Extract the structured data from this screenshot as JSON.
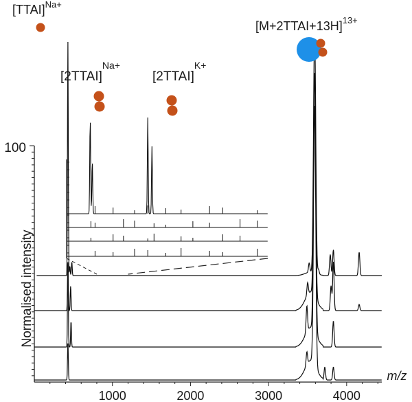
{
  "chart_data": {
    "type": "line",
    "xlabel": "m/z",
    "ylabel": "Normalised intensity",
    "x_ticks": [
      1000,
      2000,
      3000,
      4000
    ],
    "xlim": [
      0,
      4450
    ],
    "y_tick_label": "100",
    "series": [
      {
        "trace_index": 0,
        "peaks": [
          {
            "x": 430,
            "y": 100
          },
          {
            "x": 455,
            "y": 4
          },
          {
            "x": 480,
            "y": 6
          },
          {
            "x": 3520,
            "y": 4
          },
          {
            "x": 3590,
            "y": 105
          },
          {
            "x": 3640,
            "y": 2
          },
          {
            "x": 3790,
            "y": 9
          },
          {
            "x": 3830,
            "y": 11
          },
          {
            "x": 4160,
            "y": 10
          }
        ]
      },
      {
        "trace_index": 1,
        "peaks": [
          {
            "x": 430,
            "y": 8
          },
          {
            "x": 465,
            "y": 4
          },
          {
            "x": 3500,
            "y": 2
          },
          {
            "x": 3590,
            "y": 30
          },
          {
            "x": 3800,
            "y": 4
          },
          {
            "x": 3830,
            "y": 8
          },
          {
            "x": 4160,
            "y": 1
          }
        ]
      },
      {
        "trace_index": 2,
        "peaks": [
          {
            "x": 430,
            "y": 14
          },
          {
            "x": 470,
            "y": 4
          },
          {
            "x": 3490,
            "y": 4
          },
          {
            "x": 3590,
            "y": 40
          },
          {
            "x": 3830,
            "y": 4
          }
        ]
      },
      {
        "trace_index": 3,
        "peaks": [
          {
            "x": 430,
            "y": 6
          },
          {
            "x": 3490,
            "y": 2
          },
          {
            "x": 3590,
            "y": 40
          },
          {
            "x": 3720,
            "y": 2
          },
          {
            "x": 3830,
            "y": 2
          }
        ]
      }
    ],
    "inset": {
      "xlim": [
        800,
        3700
      ],
      "peaks": [
        {
          "x": 1140,
          "y": 100
        },
        {
          "x": 1170,
          "y": 55
        },
        {
          "x": 1970,
          "y": 100
        },
        {
          "x": 2030,
          "y": 70
        }
      ]
    },
    "annotations": [
      {
        "text": "[TTAI]",
        "sup": "Na+"
      },
      {
        "text": "[2TTAI]",
        "sup": "Na+"
      },
      {
        "text": "[2TTAI]",
        "sup": "K+"
      },
      {
        "text": "[M+2TTAI+13H]",
        "sup": "13+"
      }
    ],
    "colors": {
      "ttai_marker": "#c4511a",
      "protein_marker": "#1e90e8",
      "trace": "#111111"
    }
  }
}
